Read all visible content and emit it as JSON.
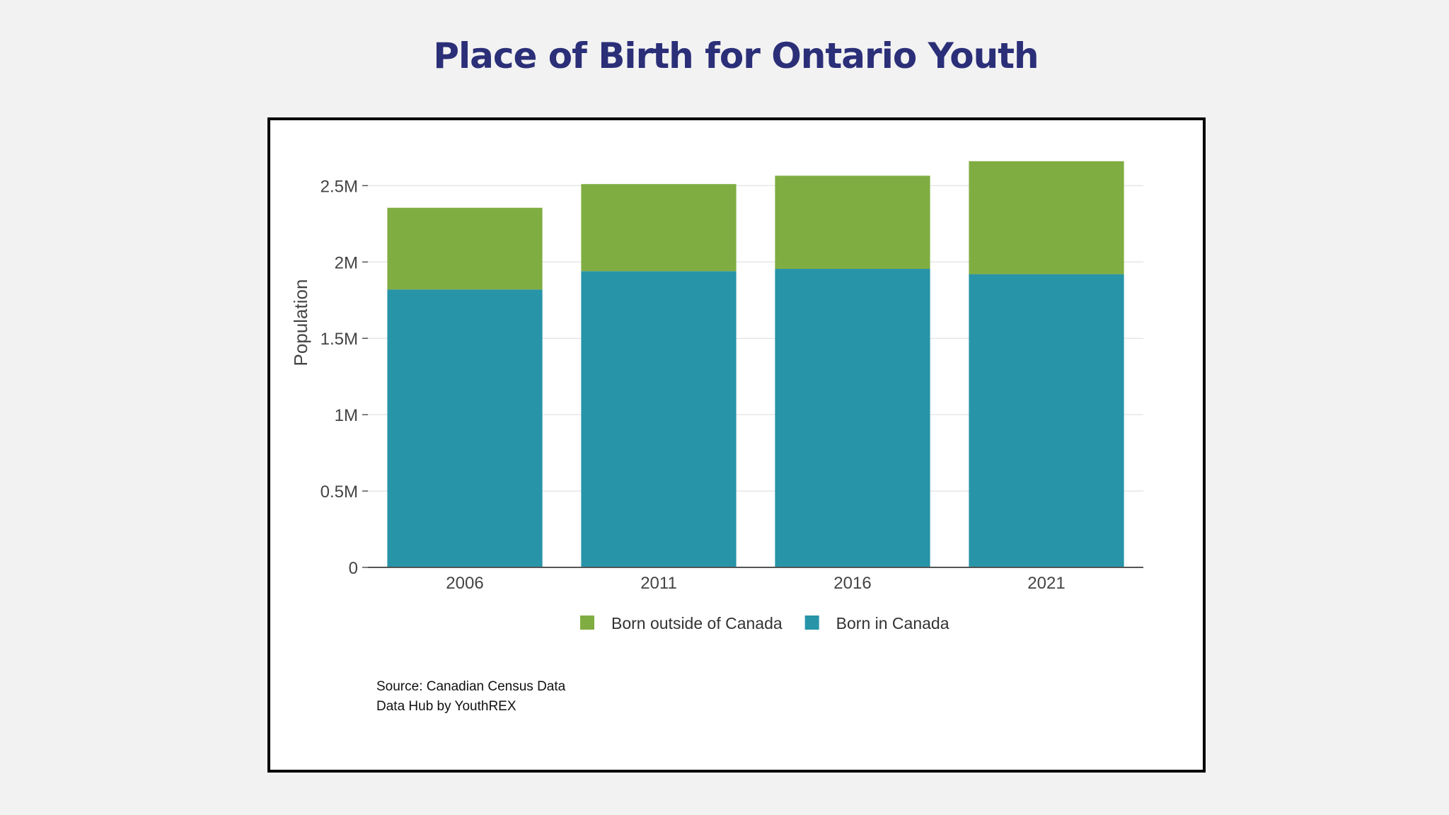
{
  "page": {
    "title": "Place of Birth for Ontario Youth"
  },
  "source": {
    "line1": "Source: Canadian Census Data",
    "line2": "Data Hub by YouthREX"
  },
  "chart_data": {
    "type": "bar",
    "stacked": true,
    "title": "Place of Birth for Ontario Youth",
    "xlabel": "",
    "ylabel": "Population",
    "categories": [
      "2006",
      "2011",
      "2016",
      "2021"
    ],
    "series": [
      {
        "name": "Born in Canada",
        "color": "#2794a8",
        "values": [
          1820000,
          1940000,
          1955000,
          1920000
        ]
      },
      {
        "name": "Born outside of Canada",
        "color": "#80ad42",
        "values": [
          535000,
          570000,
          610000,
          740000
        ]
      }
    ],
    "ylim": [
      0,
      2650000
    ],
    "yticks": [
      0,
      500000,
      1000000,
      1500000,
      2000000,
      2500000
    ],
    "ytick_labels": [
      "0",
      "0.5M",
      "1M",
      "1.5M",
      "2M",
      "2.5M"
    ],
    "grid": true,
    "legend": {
      "position": "bottom",
      "order": [
        "Born outside of Canada",
        "Born in Canada"
      ]
    }
  }
}
